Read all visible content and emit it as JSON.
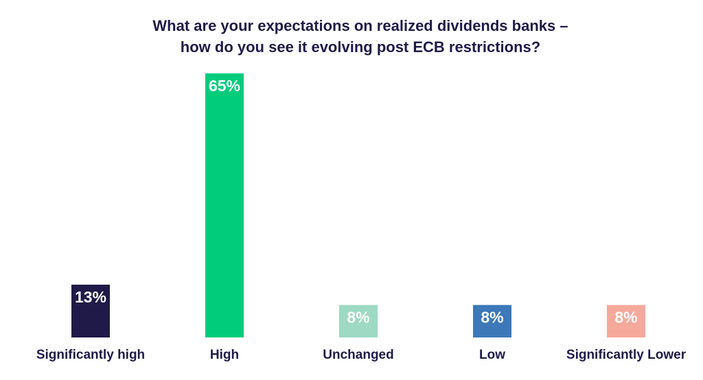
{
  "chart_data": {
    "type": "bar",
    "title_line1": "What are your expectations on realized dividends banks –",
    "title_line2": "how do you see it evolving post ECB restrictions?",
    "categories": [
      "Significantly high",
      "High",
      "Unchanged",
      "Low",
      "Significantly Lower"
    ],
    "values": [
      13,
      65,
      8,
      8,
      8
    ],
    "value_labels": [
      "13%",
      "65%",
      "8%",
      "8%",
      "8%"
    ],
    "colors": [
      "#1f1a48",
      "#00cc7c",
      "#9dd9c3",
      "#3d78b8",
      "#f6a99b"
    ],
    "xlabel": "",
    "ylabel": "",
    "ylim": [
      0,
      65
    ],
    "grid": false,
    "legend": "none"
  }
}
